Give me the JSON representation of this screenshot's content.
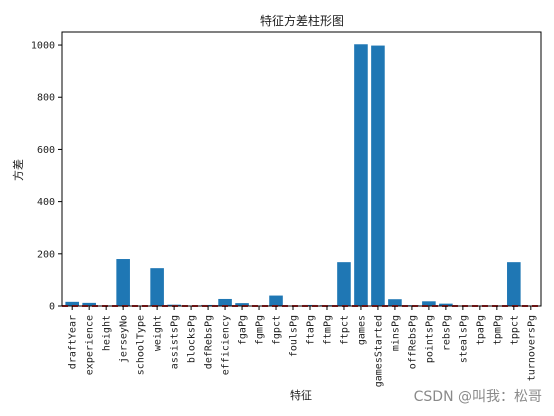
{
  "chart_data": {
    "type": "bar",
    "title": "特征方差柱形图",
    "xlabel": "特征",
    "ylabel": "方差",
    "ylim": [
      0,
      1050
    ],
    "yticks": [
      0,
      200,
      400,
      600,
      800,
      1000
    ],
    "bar_color": "#1f77b4",
    "reference_line": {
      "value": 0,
      "color": "#d62728",
      "style": "dashed"
    },
    "categories": [
      "draftYear",
      "experience",
      "height",
      "jerseyNo",
      "schoolType",
      "weight",
      "assistsPg",
      "blocksPg",
      "defRebsPg",
      "efficiency",
      "fgaPg",
      "fgmPg",
      "fgpct",
      "foulsPg",
      "ftaPg",
      "ftmPg",
      "ftpct",
      "games",
      "gamesStarted",
      "minsPg",
      "offRebsPg",
      "pointsPg",
      "rebsPg",
      "stealsPg",
      "tpaPg",
      "tpmPg",
      "tppct",
      "turnoversPg"
    ],
    "values": [
      16,
      12,
      2,
      180,
      1,
      145,
      5,
      1,
      4,
      27,
      11,
      1,
      40,
      1,
      4,
      3,
      168,
      1003,
      998,
      26,
      3,
      18,
      9,
      1,
      2,
      1,
      168,
      1
    ]
  },
  "watermark": "CSDN @叫我：松哥"
}
